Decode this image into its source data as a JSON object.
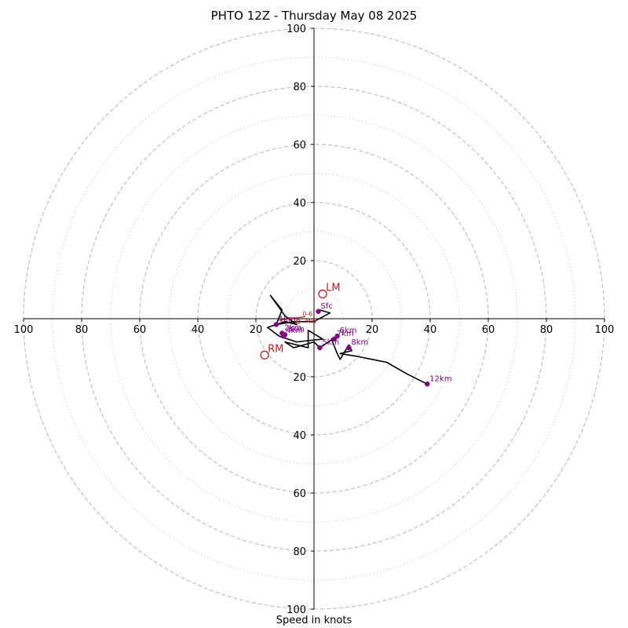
{
  "chart_data": {
    "type": "scatter",
    "title": "PHTO 12Z - Thursday May 08 2025",
    "xlabel": "Speed in knots",
    "ylabel": "",
    "xlim": [
      -100,
      100
    ],
    "ylim": [
      -100,
      100
    ],
    "rings": [
      20,
      40,
      60,
      80,
      100
    ],
    "minor_rings": [
      10,
      30,
      50,
      70,
      90
    ],
    "x_tick_labels": [
      "100",
      "80",
      "60",
      "40",
      "20",
      "20",
      "40",
      "60",
      "80",
      "100"
    ],
    "y_tick_labels": [
      "100",
      "80",
      "60",
      "40",
      "20",
      "20",
      "40",
      "60",
      "80",
      "100"
    ],
    "hodograph": {
      "u": [
        2,
        5.5,
        0,
        -7,
        -13,
        -11,
        -15,
        -10,
        -6,
        -10,
        -16,
        -12,
        -6,
        3,
        -2,
        -2,
        -10,
        -7,
        0,
        2,
        5,
        8,
        6,
        8,
        9,
        12,
        13,
        9,
        15,
        20,
        25,
        32,
        39
      ],
      "v": [
        3,
        2,
        -1,
        -1,
        -2,
        3,
        8,
        1,
        -2,
        -1,
        -3,
        -6,
        -8,
        -7,
        -4,
        -10,
        -8,
        -10,
        -8,
        -10,
        -8,
        -6,
        -7,
        -12,
        -14,
        -9,
        -11,
        -12,
        -13,
        -14,
        -15,
        -19,
        -22.5
      ]
    },
    "levels": [
      {
        "label": "Sfc",
        "u": 1.5,
        "v": 2.5
      },
      {
        "label": "1km",
        "u": -13,
        "v": -2
      },
      {
        "label": "2km",
        "u": -11,
        "v": -5
      },
      {
        "label": "3km",
        "u": -10,
        "v": -5.5
      },
      {
        "label": "4km",
        "u": -10.5,
        "v": -6
      },
      {
        "label": "5km",
        "u": 2,
        "v": -10
      },
      {
        "label": "6km",
        "u": 8,
        "v": -6
      },
      {
        "label": "7km",
        "u": 7,
        "v": -7
      },
      {
        "label": "8km",
        "u": 12,
        "v": -10
      },
      {
        "label": "12km",
        "u": 39,
        "v": -22.5
      }
    ],
    "storm_motion": [
      {
        "label": "LM",
        "u": 3,
        "v": 8.5
      },
      {
        "label": "RM",
        "u": -17,
        "v": -12.5
      }
    ],
    "mean_wind_labels": [
      "0-6",
      "MW"
    ],
    "colors": {
      "trace": "#000000",
      "levels": "#800080",
      "motion": "#b22222",
      "grid": "#bbbbbb"
    }
  }
}
